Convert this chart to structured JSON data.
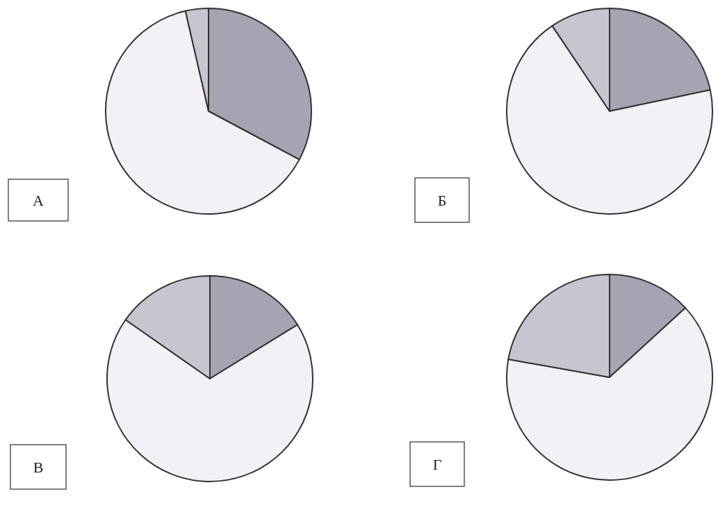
{
  "chart_data": [
    {
      "type": "pie",
      "title": "А",
      "categories": [
        null,
        null,
        null
      ],
      "values": [
        32.8,
        63.6,
        3.6
      ],
      "colors": [
        "#a4a4b2",
        "#f3f1f5",
        "#c6c6d0"
      ]
    },
    {
      "type": "pie",
      "title": "Б",
      "categories": [
        null,
        null,
        null
      ],
      "values": [
        21.7,
        68.9,
        9.4
      ],
      "colors": [
        "#a4a4b2",
        "#f3f1f5",
        "#c6c6d0"
      ]
    },
    {
      "type": "pie",
      "title": "В",
      "categories": [
        null,
        null,
        null
      ],
      "values": [
        16.2,
        68.5,
        15.3
      ],
      "colors": [
        "#a4a4b2",
        "#f3f1f5",
        "#c6c6d0"
      ]
    },
    {
      "type": "pie",
      "title": "Г",
      "categories": [
        null,
        null,
        null
      ],
      "values": [
        13.2,
        64.6,
        22.2
      ],
      "colors": [
        "#a4a4b2",
        "#f3f1f5",
        "#c6c6d0"
      ]
    }
  ]
}
